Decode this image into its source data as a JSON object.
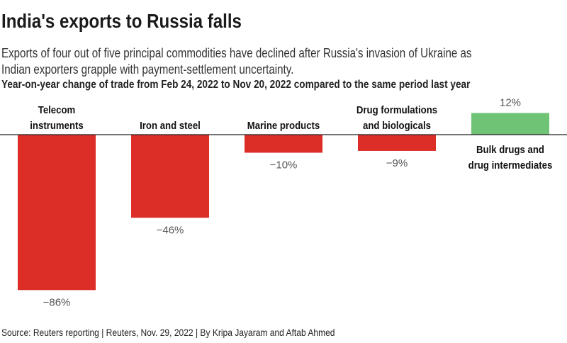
{
  "header": {
    "title": "India's exports to Russia falls",
    "subtitle_line1": "Exports of four out of five principal commodities have declined after Russia's invasion of Ukraine as",
    "subtitle_line2": "Indian exporters grapple with payment-settlement uncertainty.",
    "chart_label": "Year-on-year change of trade from Feb 24, 2022 to Nov 20, 2022 compared to the same period last year"
  },
  "footer": {
    "source": "Source: Reuters reporting | Reuters, Nov. 29, 2022 | By Kripa Jayaram and Aftab Ahmed"
  },
  "chart_data": {
    "type": "bar",
    "title": "Year-on-year change of trade from Feb 24, 2022 to Nov 20, 2022 compared to the same period last year",
    "categories": [
      [
        "Telecom",
        "instruments"
      ],
      [
        "Iron and steel"
      ],
      [
        "Marine products"
      ],
      [
        "Drug formulations",
        "and biologicals"
      ],
      [
        "Bulk drugs and",
        "drug intermediates"
      ]
    ],
    "values": [
      -86,
      -46,
      -10,
      -9,
      12
    ],
    "value_labels": [
      "−86%",
      "−46%",
      "−10%",
      "−9%",
      "12%"
    ],
    "unit": "%",
    "colors": {
      "negative": "#dc2d27",
      "positive": "#6fc375",
      "axis": "#222222"
    },
    "xlabel": "",
    "ylabel": "",
    "ylim": [
      -86,
      12
    ],
    "grid": false
  }
}
